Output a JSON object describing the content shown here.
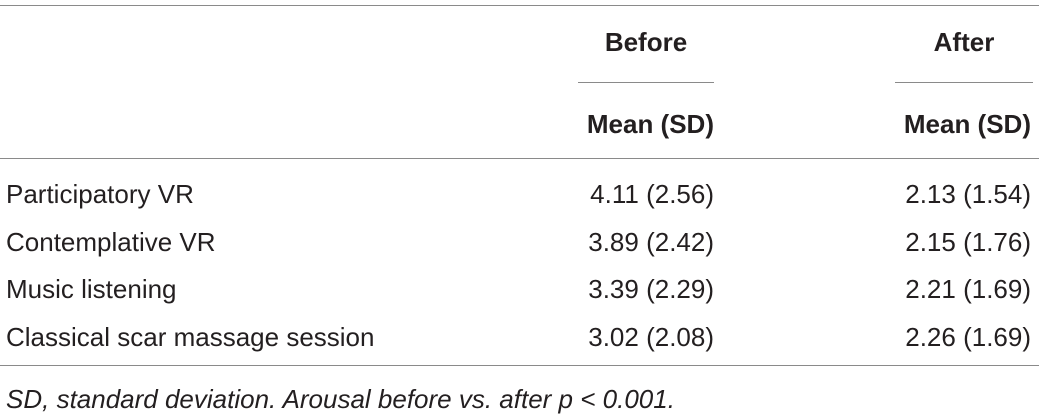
{
  "table": {
    "column_groups": [
      "Before",
      "After"
    ],
    "subheaders": [
      "Mean (SD)",
      "Mean (SD)"
    ],
    "rows": [
      [
        "Participatory VR",
        "4.11 (2.56)",
        "2.13 (1.54)"
      ],
      [
        "Contemplative VR",
        "3.89 (2.42)",
        "2.15 (1.76)"
      ],
      [
        "Music listening",
        "3.39 (2.29)",
        "2.21 (1.69)"
      ],
      [
        "Classical scar massage session",
        "3.02 (2.08)",
        "2.26 (1.69)"
      ]
    ]
  },
  "footnote": "SD, standard deviation. Arousal before vs. after p < 0.001."
}
